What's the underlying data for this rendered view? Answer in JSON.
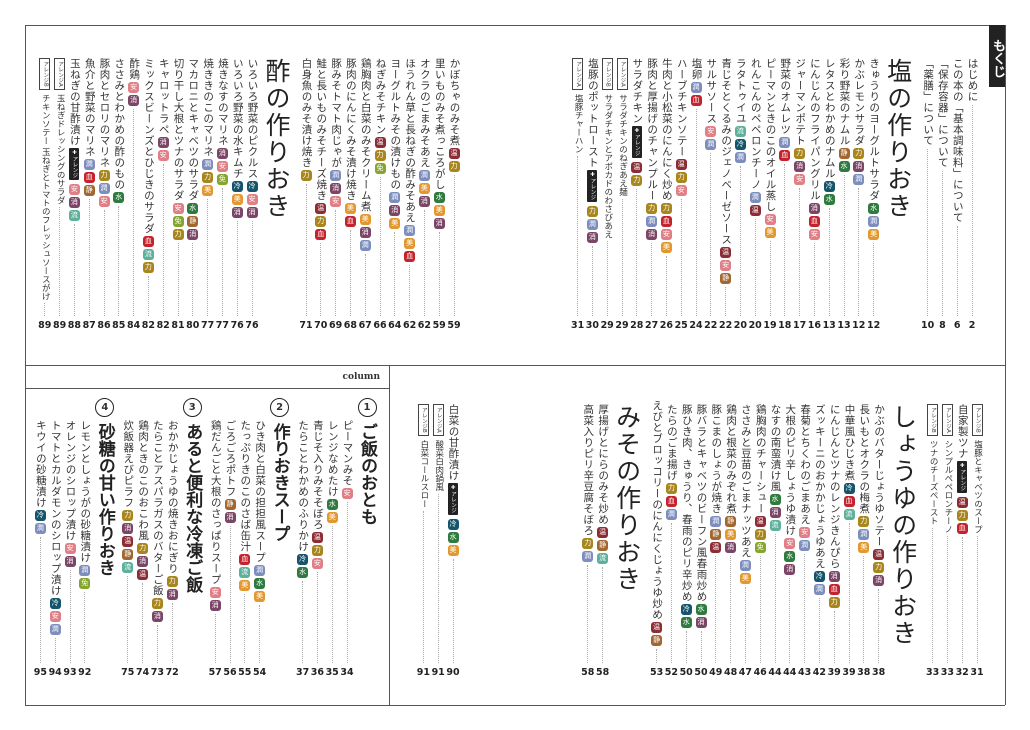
{
  "tab_label": "もくじ",
  "column_label": "column",
  "arrange_plus_label": "✚アレンジ",
  "badge_colors": {
    "冷": "#15556b",
    "水": "#2f7a3e",
    "安": "#e07f86",
    "力": "#a8861d",
    "消": "#7b4566",
    "美": "#e3982f",
    "血": "#c4232e",
    "温": "#8c2c34",
    "免": "#86a52e",
    "流": "#5fb09b",
    "潤": "#7d8dbd",
    "静": "#a2662f"
  },
  "sections": [
    {
      "id": "top-right",
      "items": [
        {
          "title": "はじめに",
          "page": "2"
        },
        {
          "title": "この本の「基本調味料」について",
          "page": "6"
        },
        {
          "title": "「保存容器」について",
          "page": "8"
        },
        {
          "title": "「薬膳」について",
          "page": "10"
        },
        {
          "heading": "塩の作りおき"
        },
        {
          "title": "きゅうりのヨーグルトサラダ",
          "badges": [
            "水",
            "潤",
            "美"
          ],
          "page": "12"
        },
        {
          "title": "かぶレモンサラダ",
          "badges": [
            "力",
            "消",
            "潤"
          ],
          "page": "12"
        },
        {
          "title": "彩り野菜のナムル",
          "badges": [
            "静",
            "水"
          ],
          "page": "13"
        },
        {
          "title": "レタスとわかめのナムル",
          "badges": [
            "冷",
            "水"
          ],
          "page": "13"
        },
        {
          "title": "にんじんのフライパングリル",
          "badges": [
            "消",
            "血",
            "安"
          ],
          "page": "16"
        },
        {
          "title": "ジャーマンポテト",
          "badges": [
            "力",
            "消",
            "安"
          ],
          "page": "17"
        },
        {
          "title": "野菜のオムレツ",
          "badges": [
            "潤",
            "血"
          ],
          "page": "18"
        },
        {
          "title": "ピーマンときのこのオイル蒸し",
          "badges": [
            "安",
            "美"
          ],
          "page": "19"
        },
        {
          "title": "れんこんのペペロンチーノ",
          "badges": [
            "潤",
            "温"
          ],
          "page": "20"
        },
        {
          "title": "ラタトゥイユ",
          "badges": [
            "流",
            "冷",
            "潤"
          ],
          "page": "20"
        },
        {
          "title": "青じそとくるみのジェノベーゼソース",
          "badges": [
            "温",
            "安",
            "静"
          ],
          "page": "22"
        },
        {
          "title": "サルサソース",
          "badges": [
            "安",
            "潤"
          ],
          "page": "22"
        },
        {
          "title": "塩卵",
          "badges": [
            "潤",
            "血"
          ],
          "page": "24"
        },
        {
          "title": "ハーブチキンソテー",
          "badges": [
            "温",
            "力",
            "安"
          ],
          "page": "25"
        },
        {
          "title": "牛肉と小松菜のにんにく炒め",
          "badges": [
            "力",
            "血",
            "安",
            "美"
          ],
          "page": "26"
        },
        {
          "title": "豚肉と厚揚げのチャンプルー",
          "badges": [
            "力",
            "潤",
            "消"
          ],
          "page": "27"
        },
        {
          "title": "サラダチキン",
          "plus": true,
          "badges": [
            "温",
            "力"
          ],
          "page": "28"
        },
        {
          "label": "アレンジA",
          "title": "サラダチキンのねぎあえ麺",
          "page": "29"
        },
        {
          "label": "アレンジB",
          "title": "サラダチキンとアボカドのわさびあえ",
          "page": "29"
        },
        {
          "title": "塩豚のポットロースト",
          "plus": true,
          "badges": [
            "力",
            "潤",
            "消"
          ],
          "page": "30"
        },
        {
          "label": "アレンジA",
          "title": "塩豚チャーハン",
          "page": "31"
        }
      ]
    },
    {
      "id": "top-left",
      "items": [
        {
          "title": "かぼちゃのみそ煮",
          "badges": [
            "温",
            "力"
          ],
          "page": "59"
        },
        {
          "title": "里いものみそ煮っころがし",
          "badges": [
            "水",
            "美",
            "消"
          ],
          "page": "59"
        },
        {
          "title": "オクラのごまみそあえ",
          "badges": [
            "潤",
            "美",
            "消"
          ],
          "page": "62"
        },
        {
          "title": "ほうれん草と長ねぎの酢みそあえ",
          "badges": [
            "潤",
            "美",
            "血"
          ],
          "page": "62"
        },
        {
          "title": "ヨーグルトみその漬けもの",
          "badges": [
            "潤",
            "消",
            "美"
          ],
          "page": "64"
        },
        {
          "title": "ねぎみそチキン",
          "badges": [
            "温",
            "力",
            "免"
          ],
          "page": "66"
        },
        {
          "title": "鶏胸肉と白菜のみそクリーム煮",
          "badges": [
            "美",
            "消",
            "潤"
          ],
          "page": "67"
        },
        {
          "title": "豚肉のにんにくみそ漬け焼き",
          "badges": [
            "美",
            "血"
          ],
          "page": "68"
        },
        {
          "title": "豚みそトマト肉じゃが",
          "badges": [
            "潤",
            "消",
            "安"
          ],
          "page": "69"
        },
        {
          "title": "鮭と長いものみそチーズ焼き",
          "badges": [
            "温",
            "力",
            "血"
          ],
          "page": "70"
        },
        {
          "title": "白身魚のみそ漬け焼き",
          "badges": [
            "力"
          ],
          "page": "71"
        },
        {
          "heading": "酢の作りおき"
        },
        {
          "title": "いろいろ野菜のピクルス",
          "badges": [
            "冷",
            "安",
            "消"
          ],
          "page": "76"
        },
        {
          "title": "いろいろ野菜の水キムチ",
          "badges": [
            "冷",
            "美",
            "消"
          ],
          "page": "76"
        },
        {
          "title": "焼きなすのマリネ",
          "badges": [
            "消",
            "安",
            "免"
          ],
          "page": "77"
        },
        {
          "title": "焼ききのこのマリネ",
          "badges": [
            "潤",
            "力",
            "美"
          ],
          "page": "77"
        },
        {
          "title": "マカロニとキャベツのサラダ",
          "badges": [
            "水",
            "静",
            "消"
          ],
          "page": "80"
        },
        {
          "title": "切り干し大根とツナのサラダ",
          "badges": [
            "安",
            "免",
            "力"
          ],
          "page": "81"
        },
        {
          "title": "キャロットラペ",
          "badges": [
            "消",
            "安"
          ],
          "page": "82"
        },
        {
          "title": "ミックスビーンズとひじきのサラダ",
          "badges": [
            "血",
            "流",
            "力"
          ],
          "page": "82"
        },
        {
          "title": "酢鶏",
          "badges": [
            "安",
            "消"
          ],
          "page": "84"
        },
        {
          "title": "ささみとわかめの酢のもの",
          "badges": [
            "水"
          ],
          "page": "85"
        },
        {
          "title": "豚肉とセロリのマリネ",
          "badges": [
            "力",
            "潤",
            "安"
          ],
          "page": "86"
        },
        {
          "title": "魚介と野菜のマリネ",
          "badges": [
            "潤",
            "血",
            "静"
          ],
          "page": "87"
        },
        {
          "title": "玉ねぎの甘酢漬け",
          "plus": true,
          "badges": [
            "安",
            "消",
            "流"
          ],
          "page": "88"
        },
        {
          "label": "アレンジA",
          "title": "玉ねぎドレッシングのサラダ",
          "page": "89"
        },
        {
          "label": "アレンジB",
          "title": "チキンソテー 玉ねぎとトマトのフレッシュソースがけ",
          "page": "89"
        }
      ]
    },
    {
      "id": "bottom-right",
      "items": [
        {
          "label": "アレンジB",
          "title": "塩豚とキャベツのスープ",
          "page": "31"
        },
        {
          "title": "自家製ツナ",
          "plus": true,
          "badges": [
            "温",
            "力",
            "血"
          ],
          "page": "32"
        },
        {
          "label": "アレンジA",
          "title": "シンプルペペロンチーノ",
          "page": "33"
        },
        {
          "label": "アレンジB",
          "title": "ツナのチーズペースト",
          "page": "33"
        },
        {
          "heading": "しょうゆの作りおき"
        },
        {
          "title": "かぶのバターじょうゆソテー",
          "badges": [
            "温",
            "力",
            "消"
          ],
          "page": "38"
        },
        {
          "title": "長いもとオクラの梅煮",
          "badges": [
            "力",
            "潤",
            "美"
          ],
          "page": "38"
        },
        {
          "title": "中華風ひじき煮",
          "badges": [
            "冷",
            "血",
            "流"
          ],
          "page": "39"
        },
        {
          "title": "にんじんとツナのレンジきんぴら",
          "badges": [
            "消",
            "血",
            "力"
          ],
          "page": "39"
        },
        {
          "title": "ズッキーニのおかかじょうゆあえ",
          "badges": [
            "冷",
            "潤"
          ],
          "page": "42"
        },
        {
          "title": "春菊とちくわのごまあえ",
          "badges": [
            "安",
            "潤"
          ],
          "page": "43"
        },
        {
          "title": "大根のピリ辛しょうゆ漬け",
          "badges": [
            "安",
            "水",
            "消"
          ],
          "page": "44"
        },
        {
          "title": "なすの南蛮漬け風",
          "badges": [
            "水",
            "消",
            "流"
          ],
          "page": "44"
        },
        {
          "title": "鶏胸肉のチャーシュー",
          "badges": [
            "温",
            "力",
            "免"
          ],
          "page": "46"
        },
        {
          "title": "ささみと豆苗のごまナッツあえ",
          "badges": [
            "潤",
            "美"
          ],
          "page": "47"
        },
        {
          "title": "鶏肉と根菜のみぞれ煮",
          "badges": [
            "静",
            "美",
            "消"
          ],
          "page": "48"
        },
        {
          "title": "豚こまのしょうが焼き",
          "badges": [
            "潤",
            "静",
            "温"
          ],
          "page": "49"
        },
        {
          "title": "豚バラとキャベツのビーフン風春雨炒め",
          "badges": [
            "水",
            "消"
          ],
          "page": "50"
        },
        {
          "title": "豚ひき肉、きゅうり、春雨のピリ辛炒め",
          "badges": [
            "冷",
            "水"
          ],
          "page": "50"
        },
        {
          "title": "たらのごま揚げ",
          "badges": [
            "力",
            "血",
            "潤"
          ],
          "page": "52"
        },
        {
          "title": "えびとブロッコリーのにんにくじょうゆ炒め",
          "badges": [
            "温",
            "静"
          ],
          "page": "53"
        },
        {
          "heading": "みその作りおき"
        },
        {
          "title": "厚揚げとにらのみそ炒め",
          "badges": [
            "温",
            "静",
            "流"
          ],
          "page": "58"
        },
        {
          "title": "高菜入りピリ辛豆腐そぼろ",
          "badges": [
            "力",
            "潤"
          ],
          "page": "58"
        }
      ]
    },
    {
      "id": "bottom-middle",
      "items": [
        {
          "title": "白菜の甘酢漬け",
          "plus": true,
          "badges": [
            "冷",
            "水",
            "美"
          ],
          "page": "90"
        },
        {
          "label": "アレンジA",
          "title": "酸菜白肉鍋風",
          "page": "91"
        },
        {
          "label": "アレンジB",
          "title": "白菜コールスロー",
          "page": "91"
        }
      ]
    },
    {
      "id": "bottom-left-column",
      "items": [
        {
          "subheading": "ご飯のおとも",
          "number": "1"
        },
        {
          "title": "ピーマンみそ",
          "badges": [
            "安"
          ],
          "page": "34"
        },
        {
          "title": "レンジなめたけ",
          "badges": [
            "水",
            "美"
          ],
          "page": "35"
        },
        {
          "title": "青じそ入りみそそぼろ",
          "badges": [
            "温",
            "力",
            "安"
          ],
          "page": "36"
        },
        {
          "title": "たらことわかめのふりかけ",
          "badges": [
            "冷",
            "水"
          ],
          "page": "37"
        },
        {
          "subheading": "作りおきスープ",
          "number": "2"
        },
        {
          "title": "ひき肉と白菜の担担風スープ",
          "badges": [
            "潤",
            "水",
            "美"
          ],
          "page": "54"
        },
        {
          "title": "たっぷりきのこのさば缶汁",
          "badges": [
            "血",
            "流",
            "美"
          ],
          "page": "55"
        },
        {
          "title": "ごろごろポトフ",
          "badges": [
            "静",
            "消"
          ],
          "page": "56"
        },
        {
          "title": "鶏だんごと大根のさっぱりスープ",
          "badges": [
            "安",
            "消"
          ],
          "page": "57"
        },
        {
          "subheading": "あると便利な冷凍ご飯",
          "number": "3"
        },
        {
          "title": "おかかじょうゆの焼きおにぎり",
          "badges": [
            "力",
            "消"
          ],
          "page": "72"
        },
        {
          "title": "たらことアスパラガスのバターご飯",
          "badges": [
            "力",
            "消"
          ],
          "page": "73"
        },
        {
          "title": "鶏肉ときのこのおこわ風",
          "badges": [
            "力",
            "消",
            "温"
          ],
          "page": "74"
        },
        {
          "title": "炊飯器えびピラフ",
          "badges": [
            "力",
            "消",
            "温",
            "静",
            "流"
          ],
          "page": "75"
        },
        {
          "subheading": "砂糖の甘い作りおき",
          "number": "4"
        },
        {
          "title": "レモンとしょうがの砂糖漬け",
          "badges": [
            "潤",
            "免"
          ],
          "page": "92"
        },
        {
          "title": "オレンジのシロップ漬け",
          "badges": [
            "安",
            "消"
          ],
          "page": "93"
        },
        {
          "title": "トマトとカルダモンのシロップ漬け",
          "badges": [
            "冷",
            "安",
            "潤"
          ],
          "page": "94"
        },
        {
          "title": "キウイの砂糖漬け",
          "badges": [
            "冷",
            "潤"
          ],
          "page": "95"
        }
      ]
    }
  ]
}
